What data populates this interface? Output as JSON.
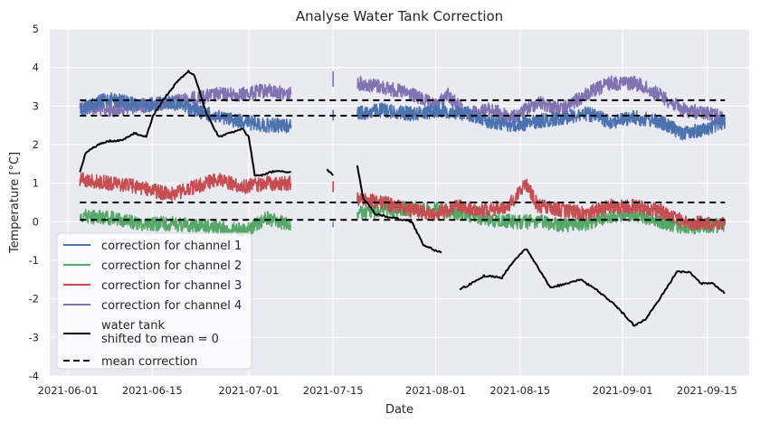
{
  "chart_data": {
    "type": "line",
    "title": "Analyse Water Tank Correction",
    "xlabel": "Date",
    "ylabel": "Temperature [°C]",
    "xlim": [
      "2021-05-29",
      "2021-09-22"
    ],
    "ylim": [
      -4,
      5
    ],
    "yticks": [
      -4,
      -3,
      -2,
      -1,
      0,
      1,
      2,
      3,
      4,
      5
    ],
    "xticks": [
      "2021-06-01",
      "2021-06-15",
      "2021-07-01",
      "2021-07-15",
      "2021-08-01",
      "2021-08-15",
      "2021-09-01",
      "2021-09-15"
    ],
    "grid": true,
    "legend_position": "lower-left",
    "style": {
      "background": "#eaeaf2",
      "grid_color": "#ffffff",
      "colors": {
        "channel_1": "#4c72b0",
        "channel_2": "#55a868",
        "channel_3": "#c44e52",
        "channel_4": "#8172b2",
        "water_tank": "#000000",
        "mean": "#000000"
      }
    },
    "series": [
      {
        "name": "correction for channel 1",
        "color": "#4c72b0",
        "segments": [
          [
            [
              "2021-06-03",
              2.9
            ],
            [
              "2021-06-08",
              3.2
            ],
            [
              "2021-06-13",
              3.0
            ],
            [
              "2021-06-18",
              3.1
            ],
            [
              "2021-06-22",
              2.9
            ],
            [
              "2021-06-26",
              2.7
            ],
            [
              "2021-06-30",
              2.6
            ],
            [
              "2021-07-04",
              2.5
            ],
            [
              "2021-07-08",
              2.5
            ]
          ],
          [
            [
              "2021-07-15",
              2.8
            ],
            [
              "2021-07-15",
              2.9
            ]
          ],
          [
            [
              "2021-07-19",
              2.8
            ],
            [
              "2021-07-23",
              2.9
            ],
            [
              "2021-07-28",
              2.8
            ],
            [
              "2021-08-02",
              2.9
            ],
            [
              "2021-08-06",
              2.8
            ],
            [
              "2021-08-10",
              2.6
            ],
            [
              "2021-08-14",
              2.5
            ],
            [
              "2021-08-18",
              2.6
            ],
            [
              "2021-08-22",
              2.7
            ],
            [
              "2021-08-26",
              2.8
            ],
            [
              "2021-08-30",
              2.6
            ],
            [
              "2021-09-03",
              2.7
            ],
            [
              "2021-09-07",
              2.6
            ],
            [
              "2021-09-11",
              2.3
            ],
            [
              "2021-09-15",
              2.4
            ],
            [
              "2021-09-18",
              2.6
            ]
          ]
        ]
      },
      {
        "name": "correction for channel 2",
        "color": "#55a868",
        "segments": [
          [
            [
              "2021-06-03",
              0.15
            ],
            [
              "2021-06-08",
              0.1
            ],
            [
              "2021-06-13",
              -0.05
            ],
            [
              "2021-06-18",
              -0.05
            ],
            [
              "2021-06-23",
              -0.1
            ],
            [
              "2021-06-28",
              -0.2
            ],
            [
              "2021-07-01",
              -0.2
            ],
            [
              "2021-07-04",
              0.1
            ],
            [
              "2021-07-08",
              -0.1
            ]
          ],
          [
            [
              "2021-07-15",
              -0.15
            ],
            [
              "2021-07-15",
              -0.1
            ]
          ],
          [
            [
              "2021-07-19",
              0.2
            ],
            [
              "2021-07-23",
              0.3
            ],
            [
              "2021-07-28",
              0.35
            ],
            [
              "2021-08-02",
              0.3
            ],
            [
              "2021-08-06",
              0.2
            ],
            [
              "2021-08-10",
              0.05
            ],
            [
              "2021-08-14",
              0.0
            ],
            [
              "2021-08-18",
              0.0
            ],
            [
              "2021-08-22",
              -0.1
            ],
            [
              "2021-08-26",
              -0.05
            ],
            [
              "2021-08-30",
              0.15
            ],
            [
              "2021-09-03",
              0.2
            ],
            [
              "2021-09-07",
              0.0
            ],
            [
              "2021-09-11",
              -0.15
            ],
            [
              "2021-09-15",
              -0.1
            ],
            [
              "2021-09-18",
              -0.1
            ]
          ]
        ]
      },
      {
        "name": "correction for channel 3",
        "color": "#c44e52",
        "segments": [
          [
            [
              "2021-06-03",
              1.1
            ],
            [
              "2021-06-08",
              1.0
            ],
            [
              "2021-06-13",
              0.9
            ],
            [
              "2021-06-18",
              0.7
            ],
            [
              "2021-06-22",
              0.9
            ],
            [
              "2021-06-26",
              1.1
            ],
            [
              "2021-06-30",
              0.9
            ],
            [
              "2021-07-04",
              1.0
            ],
            [
              "2021-07-08",
              1.0
            ]
          ],
          [
            [
              "2021-07-15",
              0.9
            ],
            [
              "2021-07-15",
              1.0
            ]
          ],
          [
            [
              "2021-07-19",
              0.6
            ],
            [
              "2021-07-23",
              0.5
            ],
            [
              "2021-07-28",
              0.3
            ],
            [
              "2021-08-01",
              0.2
            ],
            [
              "2021-08-05",
              0.4
            ],
            [
              "2021-08-09",
              0.3
            ],
            [
              "2021-08-13",
              0.4
            ],
            [
              "2021-08-16",
              1.0
            ],
            [
              "2021-08-18",
              0.4
            ],
            [
              "2021-08-22",
              0.3
            ],
            [
              "2021-08-26",
              0.2
            ],
            [
              "2021-08-30",
              0.4
            ],
            [
              "2021-09-03",
              0.4
            ],
            [
              "2021-09-07",
              0.3
            ],
            [
              "2021-09-11",
              0.0
            ],
            [
              "2021-09-15",
              -0.05
            ],
            [
              "2021-09-18",
              -0.05
            ]
          ]
        ]
      },
      {
        "name": "correction for channel 4",
        "color": "#8172b2",
        "segments": [
          [
            [
              "2021-06-03",
              3.0
            ],
            [
              "2021-06-08",
              2.9
            ],
            [
              "2021-06-13",
              3.0
            ],
            [
              "2021-06-18",
              3.1
            ],
            [
              "2021-06-22",
              3.2
            ],
            [
              "2021-06-26",
              3.3
            ],
            [
              "2021-06-30",
              3.3
            ],
            [
              "2021-07-04",
              3.4
            ],
            [
              "2021-07-08",
              3.3
            ]
          ],
          [
            [
              "2021-07-15",
              3.5
            ],
            [
              "2021-07-15",
              3.9
            ]
          ],
          [
            [
              "2021-07-19",
              3.6
            ],
            [
              "2021-07-23",
              3.5
            ],
            [
              "2021-07-28",
              3.3
            ],
            [
              "2021-08-01",
              3.0
            ],
            [
              "2021-08-03",
              3.3
            ],
            [
              "2021-08-06",
              2.8
            ],
            [
              "2021-08-10",
              2.9
            ],
            [
              "2021-08-14",
              2.7
            ],
            [
              "2021-08-18",
              3.1
            ],
            [
              "2021-08-22",
              2.9
            ],
            [
              "2021-08-26",
              3.3
            ],
            [
              "2021-08-30",
              3.6
            ],
            [
              "2021-09-03",
              3.6
            ],
            [
              "2021-09-07",
              3.3
            ],
            [
              "2021-09-11",
              2.9
            ],
            [
              "2021-09-15",
              2.8
            ],
            [
              "2021-09-18",
              2.7
            ]
          ]
        ]
      },
      {
        "name": "water tank\nshifted to mean = 0",
        "color": "#000000",
        "segments": [
          [
            [
              "2021-06-03",
              1.3
            ],
            [
              "2021-06-04",
              1.8
            ],
            [
              "2021-06-06",
              2.0
            ],
            [
              "2021-06-08",
              2.1
            ],
            [
              "2021-06-10",
              2.1
            ],
            [
              "2021-06-12",
              2.3
            ],
            [
              "2021-06-14",
              2.2
            ],
            [
              "2021-06-15",
              2.7
            ],
            [
              "2021-06-17",
              3.2
            ],
            [
              "2021-06-19",
              3.6
            ],
            [
              "2021-06-21",
              3.9
            ],
            [
              "2021-06-22",
              3.8
            ],
            [
              "2021-06-23",
              3.3
            ],
            [
              "2021-06-24",
              2.8
            ],
            [
              "2021-06-26",
              2.2
            ],
            [
              "2021-06-28",
              2.3
            ],
            [
              "2021-06-30",
              2.4
            ],
            [
              "2021-07-01",
              2.2
            ],
            [
              "2021-07-02",
              1.2
            ],
            [
              "2021-07-03",
              1.2
            ],
            [
              "2021-07-05",
              1.3
            ],
            [
              "2021-07-08",
              1.3
            ]
          ],
          [
            [
              "2021-07-14",
              1.35
            ],
            [
              "2021-07-15",
              1.2
            ]
          ],
          [
            [
              "2021-07-19",
              1.45
            ],
            [
              "2021-07-20",
              0.6
            ],
            [
              "2021-07-22",
              0.2
            ],
            [
              "2021-07-25",
              0.1
            ],
            [
              "2021-07-28",
              0.0
            ],
            [
              "2021-07-30",
              -0.6
            ],
            [
              "2021-08-01",
              -0.75
            ],
            [
              "2021-08-02",
              -0.8
            ]
          ],
          [
            [
              "2021-08-05",
              -1.75
            ],
            [
              "2021-08-07",
              -1.6
            ],
            [
              "2021-08-09",
              -1.4
            ],
            [
              "2021-08-12",
              -1.45
            ],
            [
              "2021-08-14",
              -1.0
            ],
            [
              "2021-08-16",
              -0.7
            ],
            [
              "2021-08-18",
              -1.2
            ],
            [
              "2021-08-20",
              -1.7
            ],
            [
              "2021-08-23",
              -1.6
            ],
            [
              "2021-08-25",
              -1.5
            ],
            [
              "2021-08-28",
              -1.8
            ],
            [
              "2021-08-31",
              -2.2
            ],
            [
              "2021-09-03",
              -2.7
            ],
            [
              "2021-09-05",
              -2.5
            ],
            [
              "2021-09-08",
              -1.8
            ],
            [
              "2021-09-10",
              -1.3
            ],
            [
              "2021-09-12",
              -1.3
            ],
            [
              "2021-09-14",
              -1.6
            ],
            [
              "2021-09-16",
              -1.6
            ],
            [
              "2021-09-18",
              -1.85
            ]
          ]
        ]
      },
      {
        "name": "mean correction",
        "color": "#000000",
        "dashed": true,
        "hlines": [
          3.15,
          2.75,
          0.5,
          0.05
        ]
      }
    ]
  }
}
